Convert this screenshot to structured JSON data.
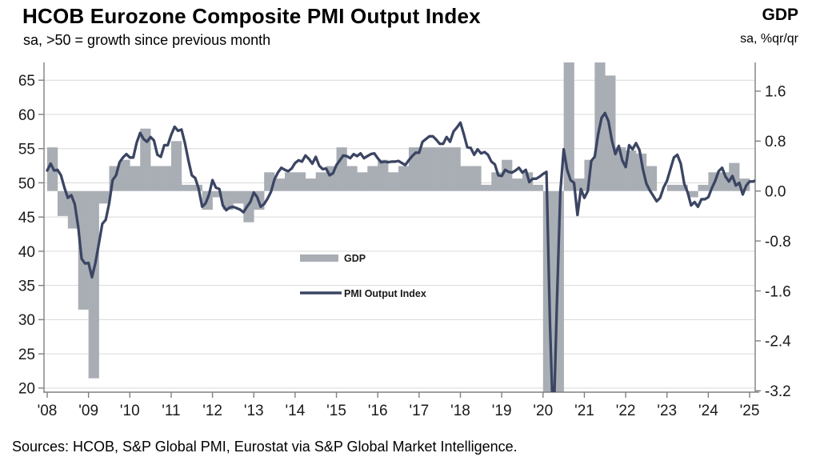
{
  "header": {
    "title": "HCOB Eurozone Composite PMI Output Index",
    "subtitle": "sa, >50 = growth since previous month",
    "right_axis_title": "GDP",
    "right_axis_subtitle": "sa, %qr/qr"
  },
  "footer": {
    "sources": "Sources: HCOB, S&P Global PMI, Eurostat via S&P Global Market Intelligence."
  },
  "chart_data": {
    "type": "combo-bar-line",
    "title": "HCOB Eurozone Composite PMI Output Index",
    "grid": true,
    "legend_position": "center-left-inside",
    "left_axis": {
      "ticks": [
        65,
        60,
        55,
        50,
        45,
        40,
        35,
        30,
        25,
        20
      ],
      "range": [
        19.4,
        67.6
      ],
      "applies_to": "PMI Output Index"
    },
    "right_axis": {
      "tick_labels": [
        "1.6",
        "0.8",
        "0.0",
        "-0.8",
        "-1.6",
        "-2.4",
        "-3.2"
      ],
      "tick_values": [
        1.6,
        0.8,
        0.0,
        -0.8,
        -1.6,
        -2.4,
        -3.2
      ],
      "zero_at_pmi": 48.8,
      "pmi_per_unit": 9.125,
      "applies_to": "GDP"
    },
    "x_axis": {
      "start": "2008-01",
      "year_labels": [
        "'08",
        "'09",
        "'10",
        "'11",
        "'12",
        "'13",
        "'14",
        "'15",
        "'16",
        "'17",
        "'18",
        "'19",
        "'20",
        "'21",
        "'22",
        "'23",
        "'24",
        "'25"
      ]
    },
    "series": [
      {
        "name": "GDP",
        "type": "bar",
        "freq": "quarterly",
        "start": "2008Q1",
        "color": "#a9aeb5",
        "values": [
          0.7,
          -0.4,
          -0.6,
          -1.9,
          -3.0,
          -0.2,
          0.4,
          0.5,
          0.4,
          1.0,
          0.4,
          0.4,
          0.8,
          0.1,
          0.1,
          -0.3,
          -0.1,
          -0.3,
          -0.2,
          -0.5,
          -0.3,
          0.3,
          0.2,
          0.3,
          0.3,
          0.2,
          0.3,
          0.4,
          0.7,
          0.4,
          0.3,
          0.4,
          0.5,
          0.3,
          0.4,
          0.7,
          0.7,
          0.7,
          0.7,
          0.7,
          0.4,
          0.4,
          0.1,
          0.3,
          0.5,
          0.2,
          0.3,
          0.1,
          -3.5,
          -11.2,
          12.6,
          0.2,
          0.5,
          2.2,
          1.85,
          0.7,
          0.65,
          0.6,
          0.4,
          0.0,
          0.1,
          0.1,
          -0.1,
          0.1,
          0.3,
          0.3,
          0.45,
          0.2
        ]
      },
      {
        "name": "PMI Output Index",
        "type": "line",
        "freq": "monthly",
        "start": "2008-01",
        "color": "#3b4563",
        "values": [
          51.8,
          52.8,
          51.8,
          51.9,
          51.1,
          49.3,
          47.8,
          48.2,
          46.9,
          43.6,
          38.9,
          38.2,
          38.3,
          36.2,
          38.3,
          41.1,
          44.0,
          44.6,
          47.0,
          50.4,
          51.1,
          53.0,
          53.7,
          54.2,
          53.7,
          53.7,
          55.9,
          57.3,
          56.4,
          56.0,
          56.7,
          56.2,
          54.1,
          53.8,
          55.5,
          55.5,
          57.0,
          58.2,
          57.6,
          57.8,
          55.8,
          53.3,
          51.1,
          50.7,
          49.1,
          46.5,
          47.0,
          48.3,
          50.4,
          49.3,
          49.1,
          46.7,
          46.0,
          46.4,
          46.5,
          46.3,
          46.1,
          45.7,
          46.5,
          47.2,
          48.6,
          47.9,
          46.5,
          46.9,
          47.7,
          48.7,
          50.5,
          51.5,
          52.2,
          51.9,
          51.7,
          52.1,
          52.9,
          53.3,
          53.1,
          54.0,
          53.5,
          52.8,
          53.8,
          52.5,
          52.0,
          52.1,
          51.1,
          51.4,
          52.6,
          53.3,
          54.0,
          53.9,
          53.6,
          54.2,
          53.9,
          54.3,
          53.6,
          53.9,
          54.2,
          54.3,
          53.6,
          53.0,
          53.1,
          53.0,
          53.1,
          53.1,
          53.2,
          52.9,
          52.6,
          53.3,
          53.9,
          54.4,
          54.4,
          56.0,
          56.4,
          56.8,
          56.8,
          56.3,
          55.7,
          55.7,
          56.7,
          56.0,
          57.5,
          58.1,
          58.8,
          57.1,
          55.2,
          55.1,
          54.1,
          54.9,
          54.3,
          54.5,
          54.1,
          53.1,
          52.7,
          51.1,
          51.0,
          51.9,
          51.6,
          51.5,
          51.8,
          52.2,
          51.5,
          51.9,
          50.1,
          50.6,
          50.6,
          50.9,
          51.3,
          51.6,
          29.7,
          13.6,
          31.9,
          48.5,
          54.9,
          51.9,
          50.4,
          50.0,
          45.3,
          49.1,
          47.8,
          48.8,
          53.2,
          53.8,
          57.1,
          59.5,
          60.2,
          59.0,
          56.2,
          54.2,
          55.4,
          53.3,
          52.3,
          55.5,
          54.9,
          55.8,
          54.8,
          52.0,
          49.9,
          48.9,
          48.1,
          47.3,
          47.8,
          49.3,
          50.3,
          52.0,
          53.7,
          54.1,
          52.8,
          49.9,
          48.6,
          46.7,
          47.2,
          46.5,
          47.6,
          47.6,
          47.9,
          49.2,
          50.3,
          51.7,
          52.2,
          50.9,
          50.2,
          51.0,
          49.6,
          50.0,
          48.3,
          49.6,
          50.2,
          50.2,
          50.4
        ]
      }
    ],
    "legend": [
      {
        "label": "GDP",
        "swatch": "bar"
      },
      {
        "label": "PMI Output Index",
        "swatch": "line"
      }
    ]
  }
}
